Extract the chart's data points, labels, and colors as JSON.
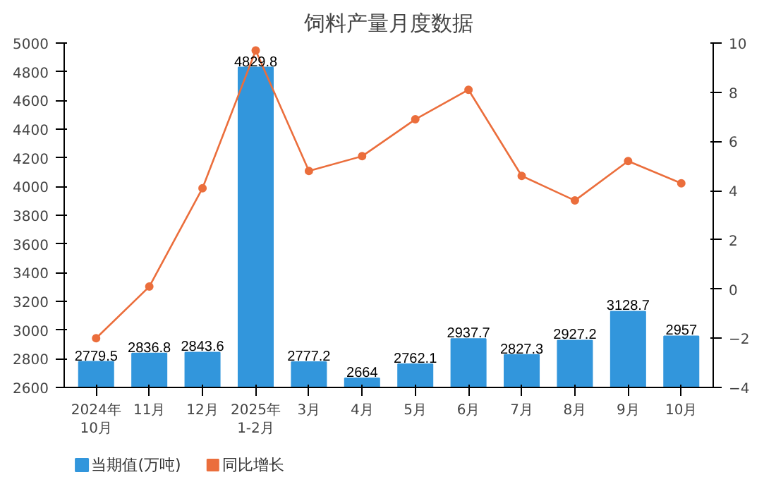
{
  "chart_data": {
    "type": "bar",
    "title": "饲料产量月度数据",
    "categories": [
      "2024年\n10月",
      "11月",
      "12月",
      "2025年\n1-2月",
      "3月",
      "4月",
      "5月",
      "6月",
      "7月",
      "8月",
      "9月",
      "10月"
    ],
    "series": [
      {
        "name": "当期值(万吨)",
        "color": "#3296dc",
        "values": [
          2779.5,
          2836.8,
          2843.6,
          4829.8,
          2777.2,
          2664,
          2762.1,
          2937.7,
          2827.3,
          2927.2,
          3128.7,
          2957
        ]
      },
      {
        "name": "同比增长",
        "type": "line",
        "axis": "y2",
        "color": "#eb6e3c",
        "marker": "circle",
        "values": [
          -2.0,
          0.1,
          4.1,
          9.7,
          4.8,
          5.4,
          6.9,
          8.1,
          4.6,
          3.6,
          5.2,
          4.3
        ]
      }
    ],
    "value_labels": [
      "2779.5",
      "2836.8",
      "2843.6",
      "4829.8",
      "2777.2",
      "2664",
      "2762.1",
      "2937.7",
      "2827.3",
      "2927.2",
      "3128.7",
      "2957"
    ],
    "ylim": [
      2600,
      5000
    ],
    "yticks": [
      2600,
      2800,
      3000,
      3200,
      3400,
      3600,
      3800,
      4000,
      4200,
      4400,
      4600,
      4800,
      5000
    ],
    "y2lim": [
      -4,
      10
    ],
    "y2ticks": [
      -4,
      -2,
      0,
      2,
      4,
      6,
      8,
      10
    ],
    "grid": false,
    "legend": "bottom left"
  }
}
